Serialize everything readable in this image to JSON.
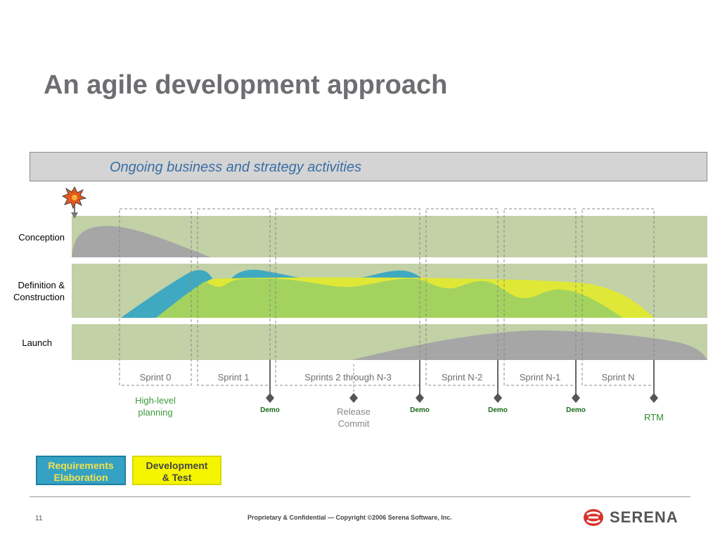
{
  "title": "An agile development approach",
  "banner": "Ongoing business and strategy activities",
  "rows": {
    "conception": "Conception",
    "definition_line1": "Definition &",
    "definition_line2": "Construction",
    "launch": "Launch"
  },
  "sprints": [
    "Sprint 0",
    "Sprint 1",
    "Sprints 2 through N-3",
    "Sprint N-2",
    "Sprint N-1",
    "Sprint N"
  ],
  "milestones": {
    "high_level_1": "High-level",
    "high_level_2": "planning",
    "demo": "Demo",
    "release_1": "Release",
    "release_2": "Commit",
    "rtm": "RTM"
  },
  "legend": {
    "req_1": "Requirements",
    "req_2": "Elaboration",
    "dev_1": "Development",
    "dev_2": "& Test"
  },
  "footer": {
    "page": "11",
    "copyright": "Proprietary & Confidential — Copyright ©2006 Serena Software, Inc.",
    "logo": "SERENA"
  },
  "colors": {
    "band": "#c2d1a6",
    "requirements": "#3fa9c2",
    "development": "#dfe836",
    "overlap": "#a3d35e",
    "hump": "#a6a6a6",
    "marker": "#555555"
  }
}
